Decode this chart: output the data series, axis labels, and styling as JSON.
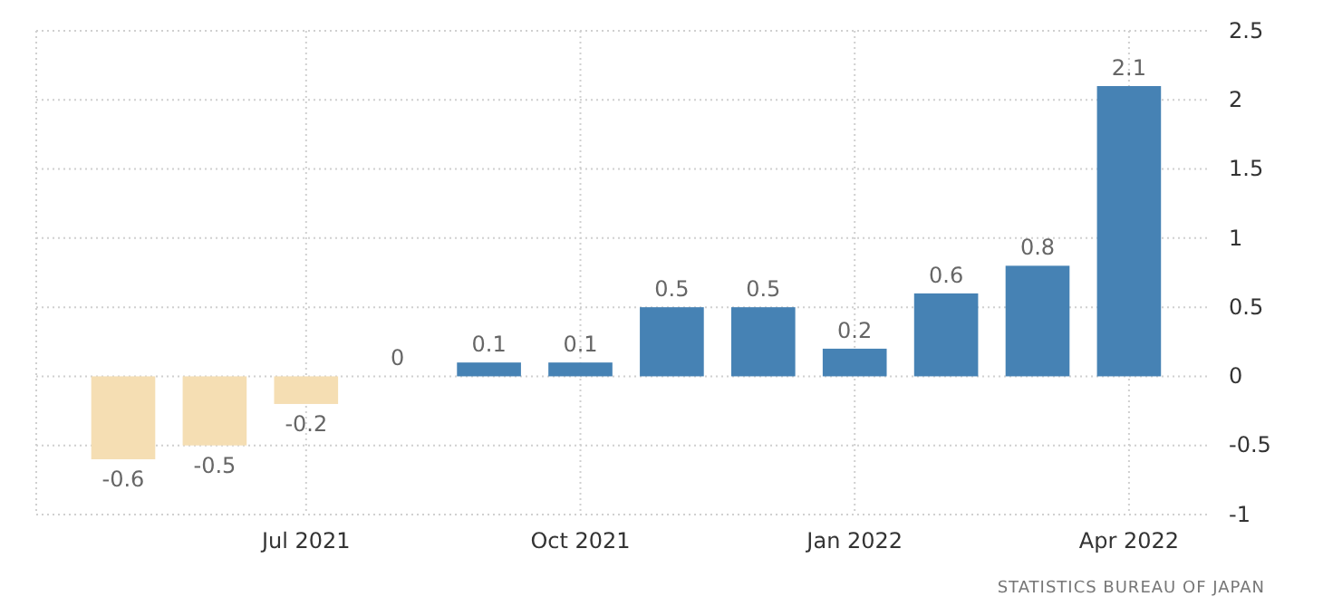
{
  "chart_data": {
    "type": "bar",
    "categories": [
      null,
      null,
      "Jul 2021",
      null,
      null,
      "Oct 2021",
      null,
      null,
      "Jan 2022",
      null,
      null,
      "Apr 2022"
    ],
    "values": [
      -0.6,
      -0.5,
      -0.2,
      0,
      0.1,
      0.1,
      0.5,
      0.5,
      0.2,
      0.6,
      0.8,
      2.1
    ],
    "colors": [
      "#f5deb3",
      "#f5deb3",
      "#f5deb3",
      "#4682b4",
      "#4682b4",
      "#4682b4",
      "#4682b4",
      "#4682b4",
      "#4682b4",
      "#4682b4",
      "#4682b4",
      "#4682b4"
    ],
    "ylim": [
      -1,
      2.5
    ],
    "yticks": [
      -1,
      -0.5,
      0,
      0.5,
      1,
      1.5,
      2,
      2.5
    ],
    "grid": true,
    "data_labels": true,
    "annotations": [
      "STATISTICS BUREAU OF JAPAN"
    ]
  }
}
